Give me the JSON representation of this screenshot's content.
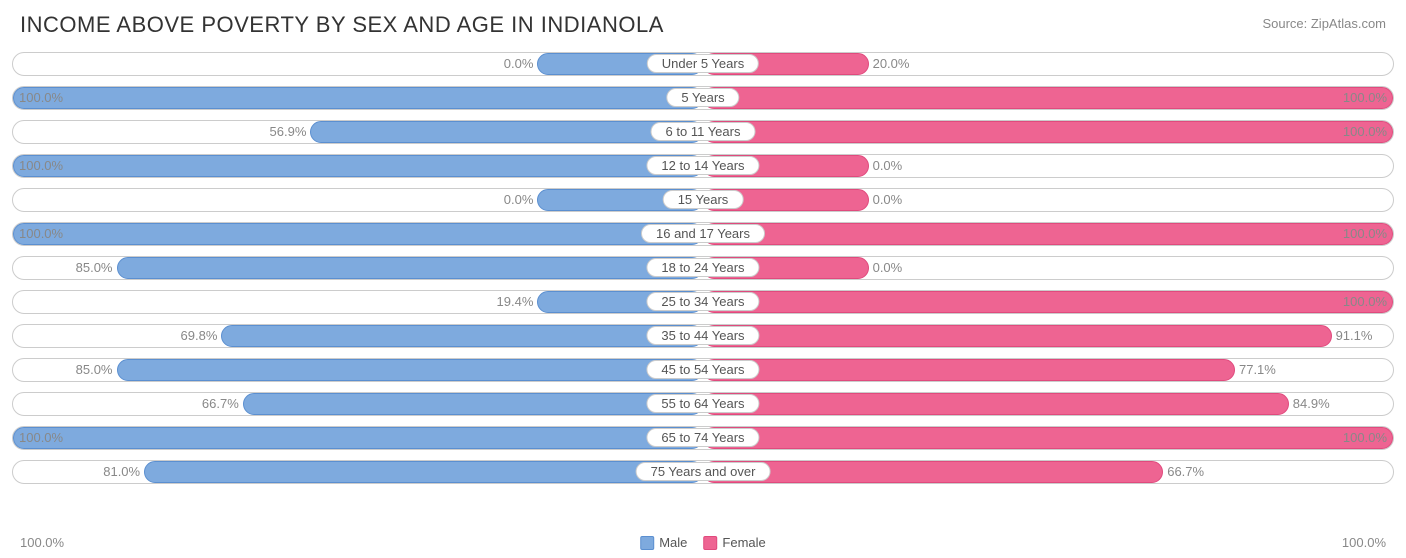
{
  "title": "INCOME ABOVE POVERTY BY SEX AND AGE IN INDIANOLA",
  "source": "Source: ZipAtlas.com",
  "chart": {
    "type": "diverging-bar",
    "male_color": "#7eaade",
    "male_border": "#5b8fd0",
    "female_color": "#ee6492",
    "female_border": "#e04a7d",
    "row_border": "#cccccc",
    "background": "#ffffff",
    "value_color": "#888888",
    "label_color": "#555555",
    "zero_min_width_pct": 12,
    "label_half_width_pct": 8,
    "rows": [
      {
        "category": "Under 5 Years",
        "male": 0.0,
        "female": 20.0
      },
      {
        "category": "5 Years",
        "male": 100.0,
        "female": 100.0
      },
      {
        "category": "6 to 11 Years",
        "male": 56.9,
        "female": 100.0
      },
      {
        "category": "12 to 14 Years",
        "male": 100.0,
        "female": 0.0
      },
      {
        "category": "15 Years",
        "male": 0.0,
        "female": 0.0
      },
      {
        "category": "16 and 17 Years",
        "male": 100.0,
        "female": 100.0
      },
      {
        "category": "18 to 24 Years",
        "male": 85.0,
        "female": 0.0
      },
      {
        "category": "25 to 34 Years",
        "male": 19.4,
        "female": 100.0
      },
      {
        "category": "35 to 44 Years",
        "male": 69.8,
        "female": 91.1
      },
      {
        "category": "45 to 54 Years",
        "male": 85.0,
        "female": 77.1
      },
      {
        "category": "55 to 64 Years",
        "male": 66.7,
        "female": 84.9
      },
      {
        "category": "65 to 74 Years",
        "male": 100.0,
        "female": 100.0
      },
      {
        "category": "75 Years and over",
        "male": 81.0,
        "female": 66.7
      }
    ]
  },
  "axis": {
    "left": "100.0%",
    "right": "100.0%"
  },
  "legend": {
    "items": [
      {
        "label": "Male",
        "color": "#7eaade",
        "border": "#5b8fd0"
      },
      {
        "label": "Female",
        "color": "#ee6492",
        "border": "#e04a7d"
      }
    ]
  }
}
